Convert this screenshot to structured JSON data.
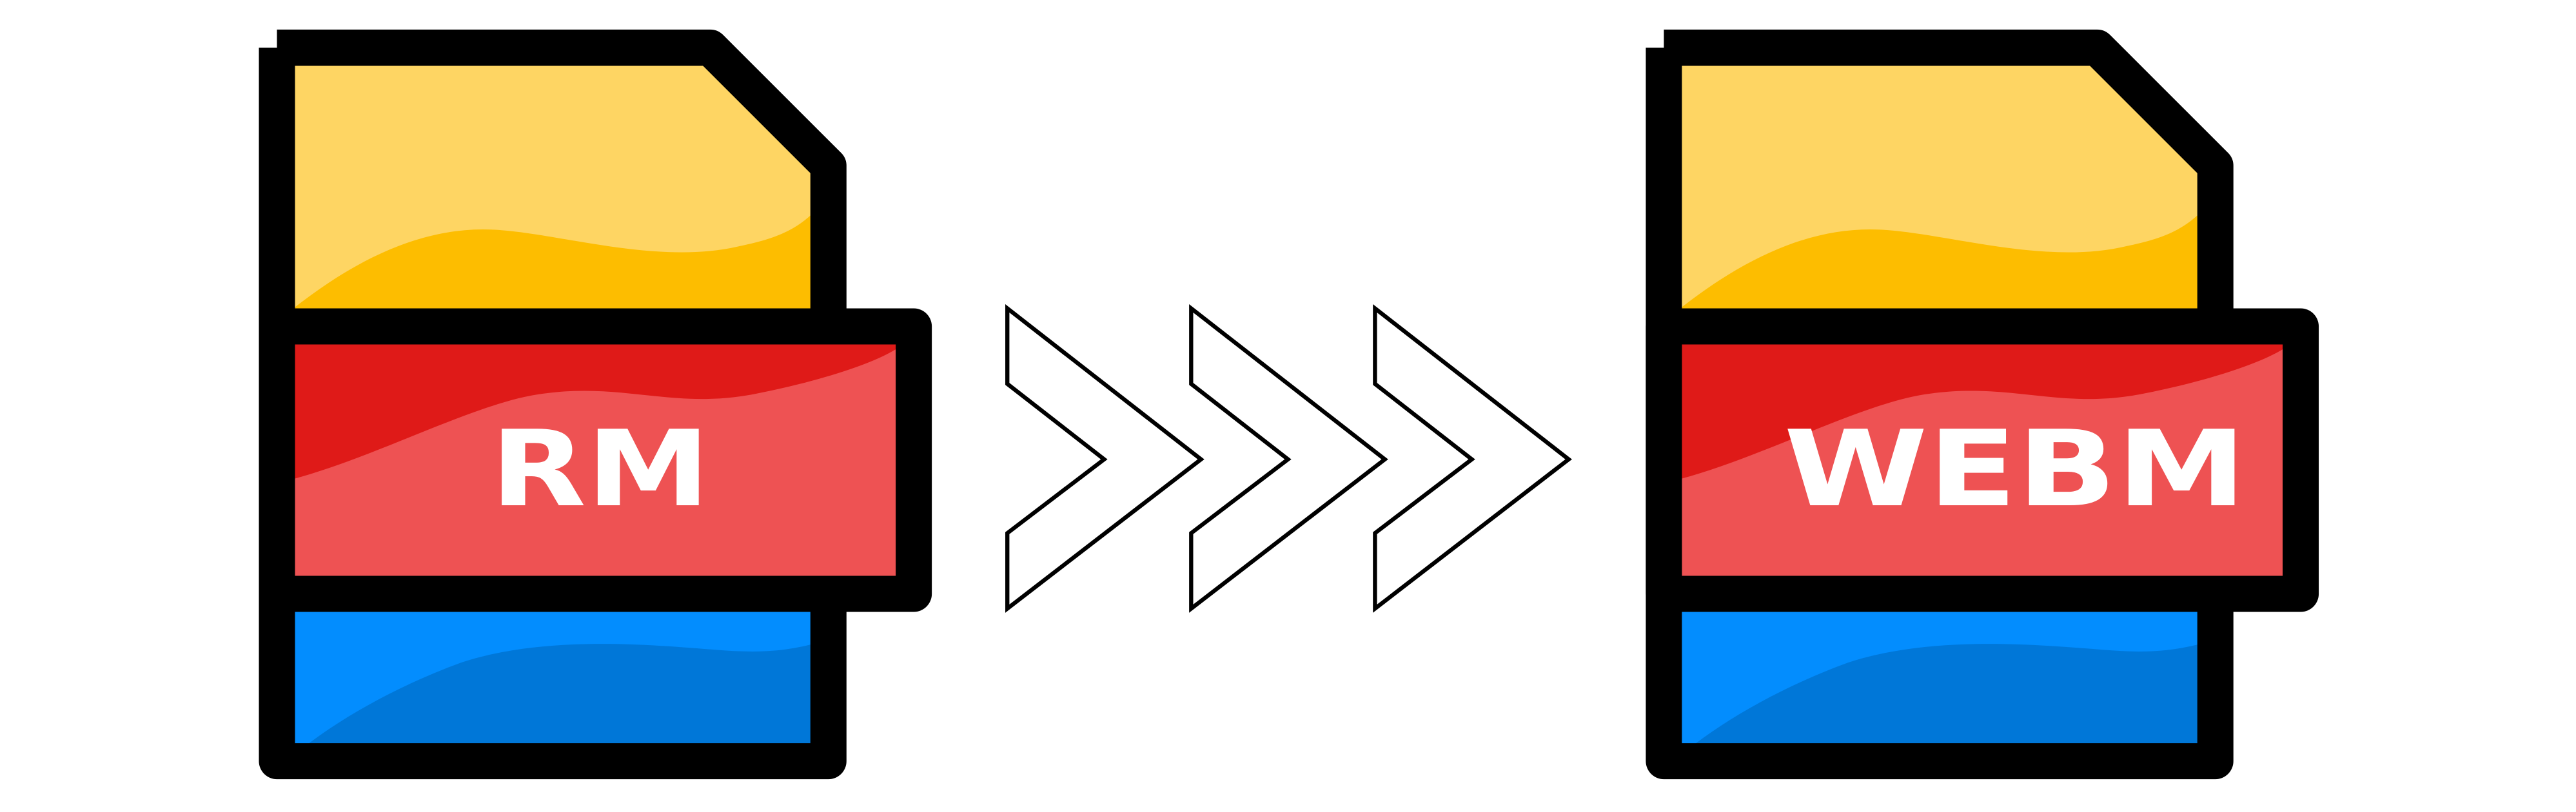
{
  "source_file": {
    "label": "RM"
  },
  "target_file": {
    "label": "WEBM"
  },
  "arrows": {
    "count": 3,
    "icon": "chevron-right-outline-icon"
  },
  "colors": {
    "outline": "#000000",
    "yellow_light": "#FED563",
    "yellow_dark": "#FDBD00",
    "red_dark": "#DF1A18",
    "red_light": "#EE5253",
    "blue_light": "#038DFE",
    "blue_dark": "#0077D8",
    "label": "#FFFFFF"
  }
}
